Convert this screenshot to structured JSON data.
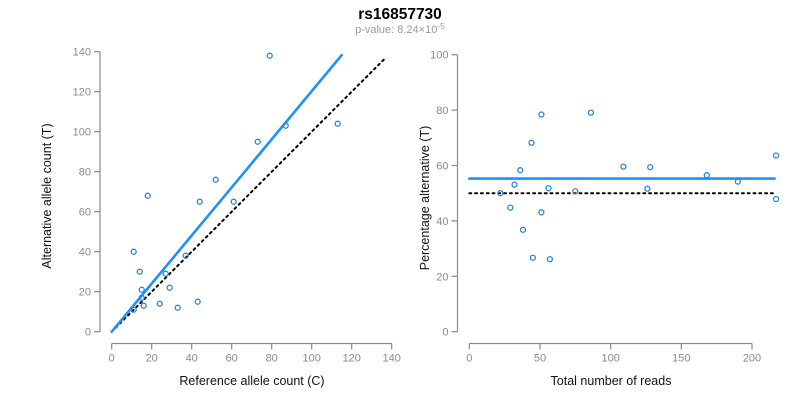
{
  "figure": {
    "title": "rs16857730",
    "subtitle_prefix": "p-value: 8.24×10",
    "subtitle_exponent": "-5"
  },
  "style": {
    "point_color": "#2e86dd",
    "fit_line_color": "#1e90ff",
    "identity_line_color": "#000000",
    "axis_color": "#8a8a8a",
    "tick_label_color": "#8a8a8a",
    "axis_title_color": "#111111",
    "title_color": "#000000",
    "subtitle_color": "#9a9a9a"
  },
  "chart_data": [
    {
      "type": "scatter",
      "title": "rs16857730",
      "xlabel": "Reference allele count (C)",
      "ylabel": "Alternative allele count (T)",
      "xlim": [
        0,
        140
      ],
      "ylim": [
        0,
        140
      ],
      "xticks": [
        0,
        20,
        40,
        60,
        80,
        100,
        120,
        140
      ],
      "yticks": [
        0,
        20,
        40,
        60,
        80,
        100,
        120,
        140
      ],
      "grid": false,
      "points": [
        [
          11,
          11
        ],
        [
          16,
          13
        ],
        [
          15,
          17
        ],
        [
          15,
          21
        ],
        [
          24,
          14
        ],
        [
          14,
          30
        ],
        [
          33,
          12
        ],
        [
          11,
          40
        ],
        [
          29,
          22
        ],
        [
          27,
          29
        ],
        [
          43,
          15
        ],
        [
          37,
          38
        ],
        [
          18,
          68
        ],
        [
          44,
          65
        ],
        [
          61,
          65
        ],
        [
          52,
          76
        ],
        [
          73,
          95
        ],
        [
          87,
          103
        ],
        [
          79,
          138
        ],
        [
          113,
          104
        ]
      ],
      "lines": [
        {
          "name": "identity-line",
          "style": "dotted",
          "colorKey": "identity_line_color",
          "width": 2,
          "from": [
            2,
            2
          ],
          "to": [
            137,
            137
          ]
        },
        {
          "name": "fit-line",
          "style": "solid",
          "colorKey": "fit_line_color",
          "width": 2.6,
          "from": [
            0,
            0
          ],
          "to": [
            115,
            138.3
          ]
        }
      ]
    },
    {
      "type": "scatter",
      "title": "rs16857730",
      "xlabel": "Total number of reads",
      "ylabel": "Percentage alternative (T)",
      "xlim": [
        0,
        200
      ],
      "ylim": [
        0,
        100
      ],
      "xticks": [
        0,
        50,
        100,
        150,
        200
      ],
      "yticks": [
        0,
        20,
        40,
        60,
        80,
        100
      ],
      "grid": false,
      "points": [
        [
          22,
          50.0
        ],
        [
          29,
          44.8
        ],
        [
          32,
          53.1
        ],
        [
          36,
          58.3
        ],
        [
          38,
          36.8
        ],
        [
          44,
          68.2
        ],
        [
          45,
          26.7
        ],
        [
          51,
          78.4
        ],
        [
          51,
          43.1
        ],
        [
          56,
          51.8
        ],
        [
          57,
          26.2
        ],
        [
          75,
          50.7
        ],
        [
          86,
          79.1
        ],
        [
          109,
          59.6
        ],
        [
          126,
          51.6
        ],
        [
          128,
          59.4
        ],
        [
          168,
          56.5
        ],
        [
          190,
          54.2
        ],
        [
          217,
          63.6
        ],
        [
          217,
          47.9
        ]
      ],
      "lines": [
        {
          "name": "fifty-percent-line",
          "style": "dotted",
          "colorKey": "identity_line_color",
          "width": 2,
          "from": [
            0,
            50
          ],
          "to": [
            216,
            50
          ]
        },
        {
          "name": "mean-percentage-line",
          "style": "solid",
          "colorKey": "fit_line_color",
          "width": 2.6,
          "from": [
            0,
            55.3
          ],
          "to": [
            216,
            55.3
          ]
        }
      ]
    }
  ]
}
